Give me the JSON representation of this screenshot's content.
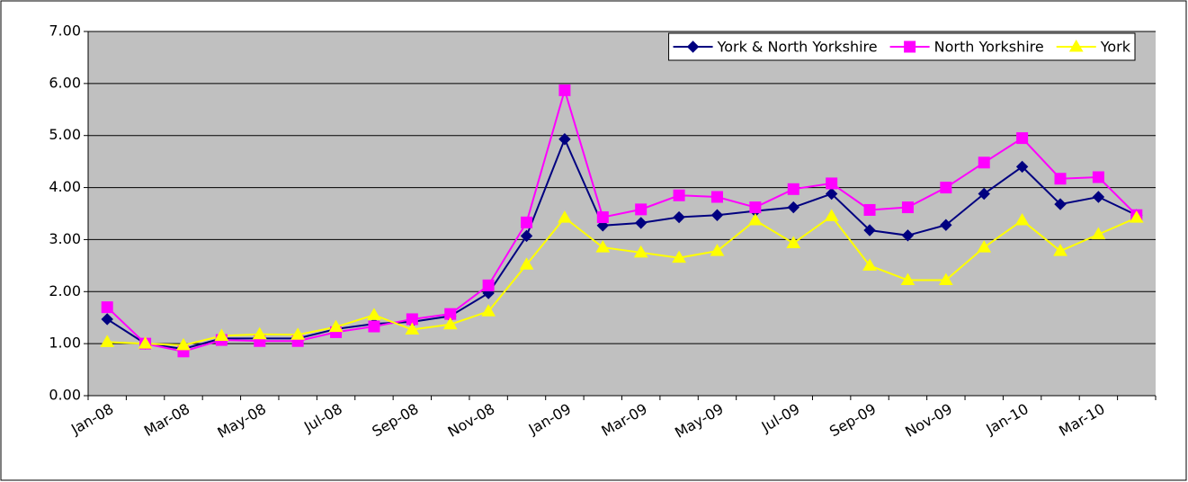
{
  "chart_data": {
    "type": "line",
    "categories": [
      "Jan-08",
      null,
      "Mar-08",
      null,
      "May-08",
      null,
      "Jul-08",
      null,
      "Sep-08",
      null,
      "Nov-08",
      null,
      "Jan-09",
      null,
      "Mar-09",
      null,
      "May-09",
      null,
      "Jul-09",
      null,
      "Sep-09",
      null,
      "Nov-09",
      null,
      "Jan-10",
      null,
      "Mar-10",
      null
    ],
    "series": [
      {
        "name": "York & North Yorkshire",
        "color": "#000080",
        "marker": "diamond",
        "values": [
          1.47,
          1.0,
          0.9,
          1.1,
          1.1,
          1.1,
          1.28,
          1.38,
          1.42,
          1.53,
          1.97,
          3.07,
          4.93,
          3.27,
          3.32,
          3.43,
          3.47,
          3.55,
          3.62,
          3.88,
          3.18,
          3.08,
          3.28,
          3.88,
          4.4,
          3.68,
          3.82,
          3.47
        ]
      },
      {
        "name": "North Yorkshire",
        "color": "#ff00ff",
        "marker": "square",
        "values": [
          1.7,
          1.0,
          0.85,
          1.07,
          1.05,
          1.05,
          1.22,
          1.33,
          1.47,
          1.57,
          2.12,
          3.33,
          5.87,
          3.43,
          3.58,
          3.85,
          3.82,
          3.62,
          3.97,
          4.08,
          3.57,
          3.62,
          4.0,
          4.48,
          4.95,
          4.17,
          4.2,
          3.47
        ]
      },
      {
        "name": "York",
        "color": "#ffff00",
        "marker": "triangle",
        "values": [
          1.03,
          1.0,
          0.97,
          1.15,
          1.18,
          1.17,
          1.32,
          1.55,
          1.27,
          1.37,
          1.62,
          2.52,
          3.42,
          2.85,
          2.75,
          2.65,
          2.78,
          3.37,
          2.93,
          3.45,
          2.5,
          2.22,
          2.22,
          2.85,
          3.37,
          2.78,
          3.1,
          3.42
        ]
      }
    ],
    "ylim": [
      0,
      7
    ],
    "yticks": [
      {
        "value": 0,
        "label": "0.00"
      },
      {
        "value": 1,
        "label": "1.00"
      },
      {
        "value": 2,
        "label": "2.00"
      },
      {
        "value": 3,
        "label": "3.00"
      },
      {
        "value": 4,
        "label": "4.00"
      },
      {
        "value": 5,
        "label": "5.00"
      },
      {
        "value": 6,
        "label": "6.00"
      },
      {
        "value": 7,
        "label": "7.00"
      }
    ],
    "grid": true,
    "plot_background": "#c0c0c0",
    "legend": "top-right"
  }
}
